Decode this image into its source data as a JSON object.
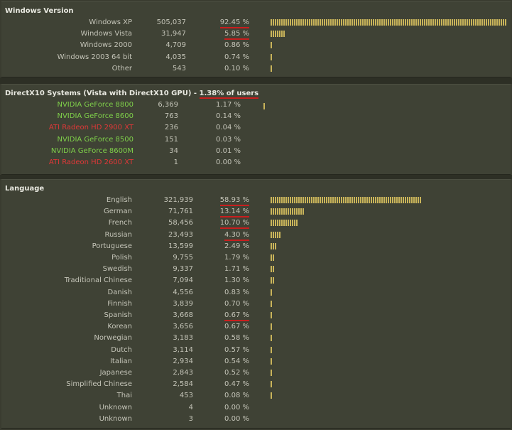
{
  "sections": {
    "windows": {
      "title": "Windows Version",
      "rows": [
        {
          "label": "Windows XP",
          "count": "505,037",
          "pct": "92.45 %",
          "value": 92.45,
          "underline": true
        },
        {
          "label": "Windows Vista",
          "count": "31,947",
          "pct": "5.85 %",
          "value": 5.85,
          "underline": true
        },
        {
          "label": "Windows 2000",
          "count": "4,709",
          "pct": "0.86 %",
          "value": 0.86,
          "underline": false
        },
        {
          "label": "Windows 2003 64 bit",
          "count": "4,035",
          "pct": "0.74 %",
          "value": 0.74,
          "underline": false
        },
        {
          "label": "Other",
          "count": "543",
          "pct": "0.10 %",
          "value": 0.1,
          "underline": false
        }
      ]
    },
    "dx10": {
      "title_prefix": "DirectX10 Systems (Vista with DirectX10 GPU) - ",
      "title_highlight": "1.38% of users",
      "bar_value": 1.38,
      "rows": [
        {
          "label": "NVIDIA GeForce 8800",
          "count": "6,369",
          "pct": "1.17 %",
          "vendor": "green"
        },
        {
          "label": "NVIDIA GeForce 8600",
          "count": "763",
          "pct": "0.14 %",
          "vendor": "green"
        },
        {
          "label": "ATI Radeon HD 2900 XT",
          "count": "236",
          "pct": "0.04 %",
          "vendor": "red"
        },
        {
          "label": "NVIDIA GeForce 8500",
          "count": "151",
          "pct": "0.03 %",
          "vendor": "green"
        },
        {
          "label": "NVIDIA GeForce 8600M",
          "count": "34",
          "pct": "0.01 %",
          "vendor": "green"
        },
        {
          "label": "ATI Radeon HD 2600 XT",
          "count": "1",
          "pct": "0.00 %",
          "vendor": "red"
        }
      ]
    },
    "language": {
      "title": "Language",
      "rows": [
        {
          "label": "English",
          "count": "321,939",
          "pct": "58.93 %",
          "value": 58.93,
          "underline": true
        },
        {
          "label": "German",
          "count": "71,761",
          "pct": "13.14 %",
          "value": 13.14,
          "underline": true
        },
        {
          "label": "French",
          "count": "58,456",
          "pct": "10.70 %",
          "value": 10.7,
          "underline": true
        },
        {
          "label": "Russian",
          "count": "23,493",
          "pct": "4.30 %",
          "value": 4.3,
          "underline": true
        },
        {
          "label": "Portuguese",
          "count": "13,599",
          "pct": "2.49 %",
          "value": 2.49,
          "underline": false
        },
        {
          "label": "Polish",
          "count": "9,755",
          "pct": "1.79 %",
          "value": 1.79,
          "underline": false
        },
        {
          "label": "Swedish",
          "count": "9,337",
          "pct": "1.71 %",
          "value": 1.71,
          "underline": false
        },
        {
          "label": "Traditional Chinese",
          "count": "7,094",
          "pct": "1.30 %",
          "value": 1.3,
          "underline": false
        },
        {
          "label": "Danish",
          "count": "4,556",
          "pct": "0.83 %",
          "value": 0.83,
          "underline": false
        },
        {
          "label": "Finnish",
          "count": "3,839",
          "pct": "0.70 %",
          "value": 0.7,
          "underline": false
        },
        {
          "label": "Spanish",
          "count": "3,668",
          "pct": "0.67 %",
          "value": 0.67,
          "underline": true
        },
        {
          "label": "Korean",
          "count": "3,656",
          "pct": "0.67 %",
          "value": 0.67,
          "underline": false
        },
        {
          "label": "Norwegian",
          "count": "3,183",
          "pct": "0.58 %",
          "value": 0.58,
          "underline": false
        },
        {
          "label": "Dutch",
          "count": "3,114",
          "pct": "0.57 %",
          "value": 0.57,
          "underline": false
        },
        {
          "label": "Italian",
          "count": "2,934",
          "pct": "0.54 %",
          "value": 0.54,
          "underline": false
        },
        {
          "label": "Japanese",
          "count": "2,843",
          "pct": "0.52 %",
          "value": 0.52,
          "underline": false
        },
        {
          "label": "Simplified Chinese",
          "count": "2,584",
          "pct": "0.47 %",
          "value": 0.47,
          "underline": false
        },
        {
          "label": "Thai",
          "count": "453",
          "pct": "0.08 %",
          "value": 0.08,
          "underline": false
        },
        {
          "label": "Unknown",
          "count": "4",
          "pct": "0.00 %",
          "value": 0.0,
          "underline": false
        },
        {
          "label": "Unknown",
          "count": "3",
          "pct": "0.00 %",
          "value": 0.0,
          "underline": false
        }
      ]
    }
  },
  "colors": {
    "bar": "#c9b45a",
    "nvidia": "#7fd04a",
    "ati": "#e03838",
    "underline": "#c81e1e"
  }
}
